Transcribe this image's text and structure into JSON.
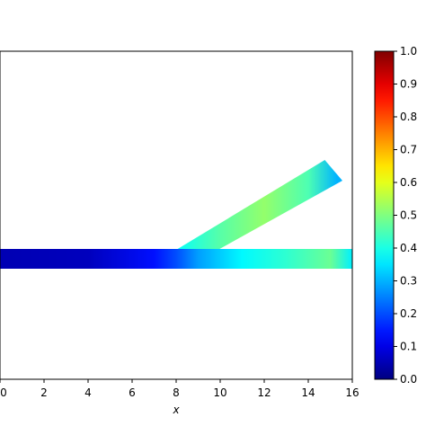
{
  "chart_data": {
    "type": "heatmap",
    "title": "",
    "xlabel": "x",
    "ylabel": "",
    "xlim": [
      0,
      16
    ],
    "x_ticks": [
      0,
      2,
      4,
      6,
      8,
      10,
      12,
      14,
      16
    ],
    "x_tick_labels": [
      "0",
      "2",
      "4",
      "6",
      "8",
      "10",
      "12",
      "14",
      "16"
    ],
    "colormap": "jet",
    "colorbar": {
      "range": [
        0.0,
        1.0
      ],
      "ticks": [
        0.0,
        0.1,
        0.2,
        0.3,
        0.4,
        0.5,
        0.6,
        0.7,
        0.8,
        0.9,
        1.0
      ],
      "tick_labels": [
        "0.0",
        "0.1",
        "0.2",
        "0.3",
        "0.4",
        "0.5",
        "0.6",
        "0.7",
        "0.8",
        "0.9",
        "1.0"
      ]
    },
    "field": {
      "main_channel": {
        "x": [
          0,
          4,
          7,
          8,
          9,
          11,
          13,
          15,
          16
        ],
        "value": [
          0.05,
          0.06,
          0.14,
          0.2,
          0.28,
          0.37,
          0.42,
          0.48,
          0.36
        ]
      },
      "branch": {
        "x": [
          8,
          10,
          12,
          14,
          15.3
        ],
        "value": [
          0.38,
          0.46,
          0.52,
          0.45,
          0.3
        ]
      }
    },
    "grid": false,
    "legend": "none"
  },
  "colors": {
    "axis": "#000000",
    "background": "#ffffff"
  }
}
